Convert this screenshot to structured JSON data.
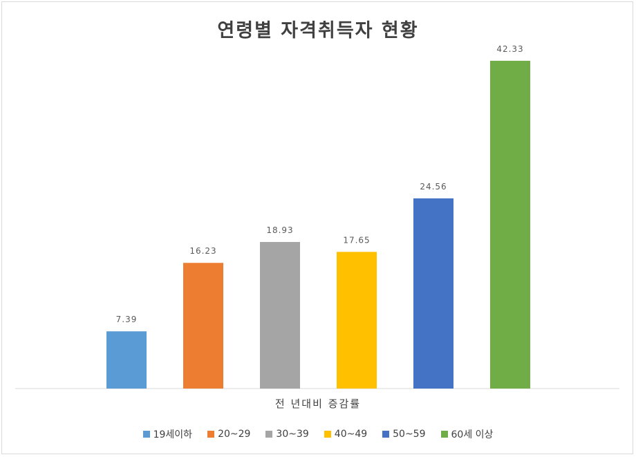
{
  "chart_data": {
    "type": "bar",
    "title": "연령별 자격취득자 현황",
    "categories": [
      "전년대비 증감률"
    ],
    "xlabel": "전 년대비 증감률",
    "ylim": [
      0,
      45
    ],
    "grid": false,
    "legend_position": "bottom",
    "series": [
      {
        "name": "19세이하",
        "value": 7.39,
        "label": "7.39",
        "color": "#5b9bd5"
      },
      {
        "name": "20~29",
        "value": 16.23,
        "label": "16.23",
        "color": "#ed7d31"
      },
      {
        "name": "30~39",
        "value": 18.93,
        "label": "18.93",
        "color": "#a5a5a5"
      },
      {
        "name": "40~49",
        "value": 17.65,
        "label": "17.65",
        "color": "#ffc000"
      },
      {
        "name": "50~59",
        "value": 24.56,
        "label": "24.56",
        "color": "#4472c4"
      },
      {
        "name": "60세 이상",
        "value": 42.33,
        "label": "42.33",
        "color": "#70ad47"
      }
    ]
  }
}
